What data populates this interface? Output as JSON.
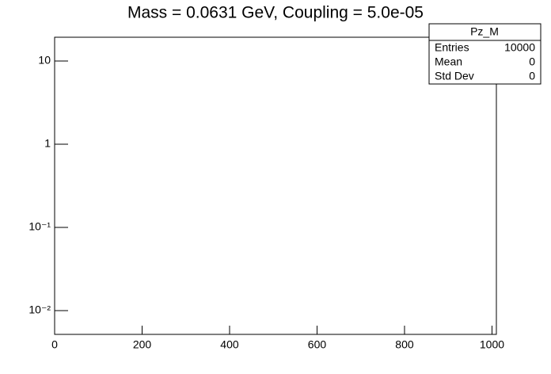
{
  "chart_data": {
    "type": "histogram",
    "title": "Mass = 0.0631 GeV, Coupling = 5.0e-05",
    "xlim": [
      0,
      1010
    ],
    "xticks": [
      0,
      200,
      400,
      600,
      800,
      1000
    ],
    "ylim": [
      0.00518,
      19.3
    ],
    "log_y": true,
    "yticks": [
      {
        "value": 0.01,
        "label": "10⁻²"
      },
      {
        "value": 0.1,
        "label": "10⁻¹"
      },
      1,
      10
    ],
    "stats": {
      "title": "Pz_M",
      "rows": [
        [
          "Entries",
          10000
        ],
        [
          "Mean",
          0
        ],
        [
          "Std Dev",
          0
        ]
      ]
    }
  }
}
